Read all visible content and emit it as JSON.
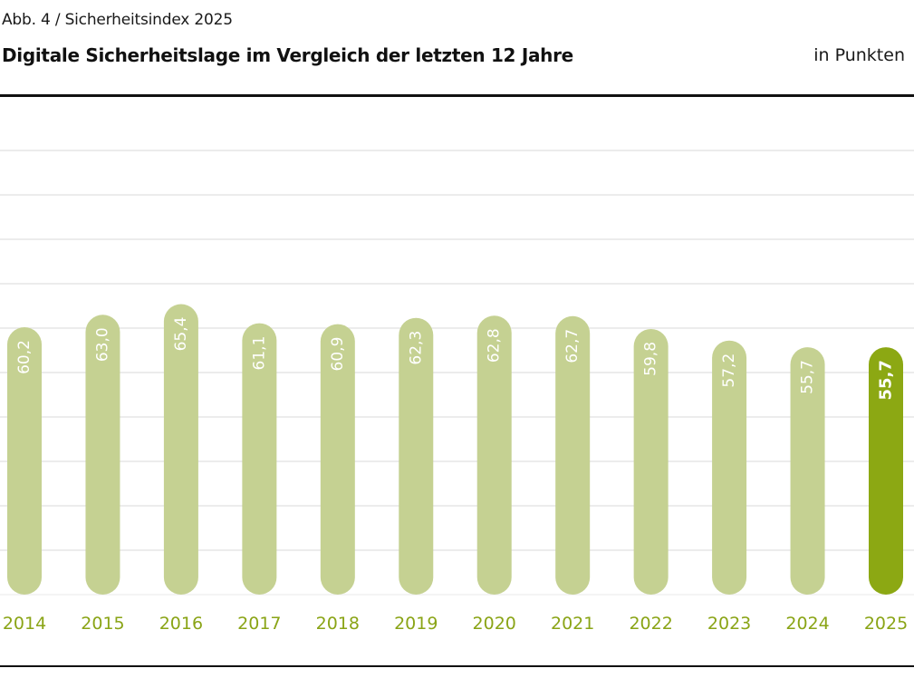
{
  "header": {
    "kicker": "Abb. 4 / Sicherheitsindex 2025",
    "title": "Digitale Sicherheitslage im Vergleich der letzten 12 Jahre",
    "unit": "in Punkten"
  },
  "colors": {
    "bar": "#c5d192",
    "bar_highlight": "#8ca813",
    "year_label": "#8aa416",
    "grid": "#e6e6e6",
    "value_label": "#ffffff"
  },
  "chart_data": {
    "type": "bar",
    "title": "Digitale Sicherheitslage im Vergleich der letzten 12 Jahre",
    "subtitle": "Abb. 4 / Sicherheitsindex 2025",
    "xlabel": "",
    "ylabel": "in Punkten",
    "categories": [
      "2014",
      "2015",
      "2016",
      "2017",
      "2018",
      "2019",
      "2020",
      "2021",
      "2022",
      "2023",
      "2024",
      "2025"
    ],
    "values": [
      60.2,
      63.0,
      65.4,
      61.1,
      60.9,
      62.3,
      62.8,
      62.7,
      59.8,
      57.2,
      55.7,
      55.7
    ],
    "value_labels": [
      "60,2",
      "63,0",
      "65,4",
      "61,1",
      "60,9",
      "62,3",
      "62,8",
      "62,7",
      "59,8",
      "57,2",
      "55,7",
      "55,7"
    ],
    "highlight_index": 11,
    "ylim": [
      0,
      100
    ],
    "y_grid_step": 10,
    "grid": true,
    "y_tick_labels_visible": false,
    "legend": "none",
    "orientation": "vertical",
    "value_label_rotation": "vertical"
  }
}
